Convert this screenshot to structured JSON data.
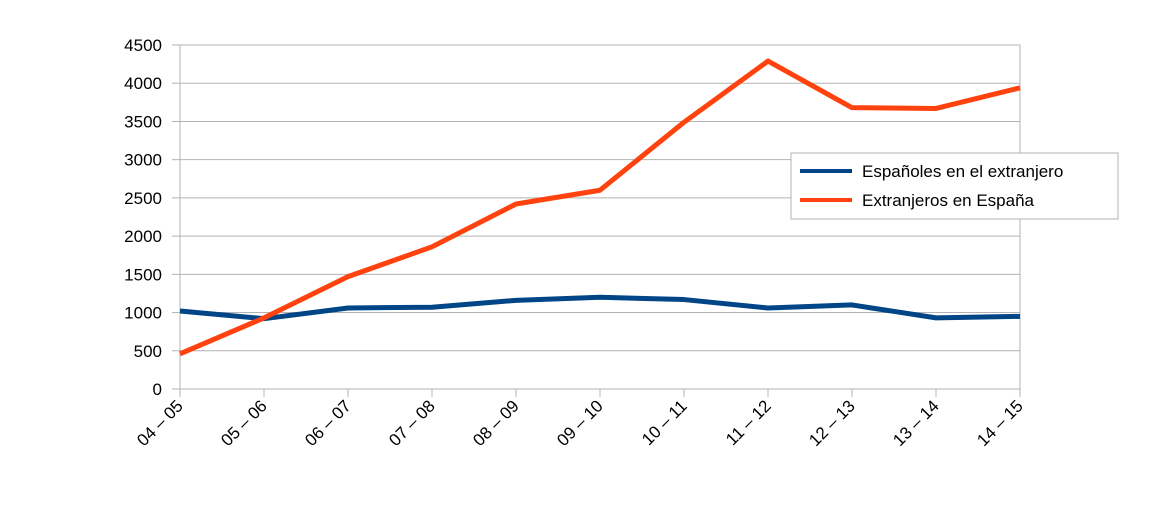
{
  "chart_data": {
    "type": "line",
    "categories": [
      "04 – 05",
      "05 – 06",
      "06 – 07",
      "07 – 08",
      "08 – 09",
      "09 – 10",
      "10 – 11",
      "11 – 12",
      "12 – 13",
      "13 – 14",
      "14 – 15"
    ],
    "series": [
      {
        "name": "Españoles en el extranjero",
        "color": "#004586",
        "values": [
          1020,
          920,
          1060,
          1070,
          1160,
          1200,
          1170,
          1060,
          1100,
          930,
          950
        ]
      },
      {
        "name": "Extranjeros en España",
        "color": "#ff420e",
        "values": [
          460,
          930,
          1470,
          1860,
          2420,
          2600,
          3490,
          4290,
          3680,
          3670,
          3940
        ]
      }
    ],
    "ylim": [
      0,
      4500
    ],
    "yticks": [
      0,
      500,
      1000,
      1500,
      2000,
      2500,
      3000,
      3500,
      4000,
      4500
    ],
    "grid": true,
    "legend_position": "right"
  }
}
